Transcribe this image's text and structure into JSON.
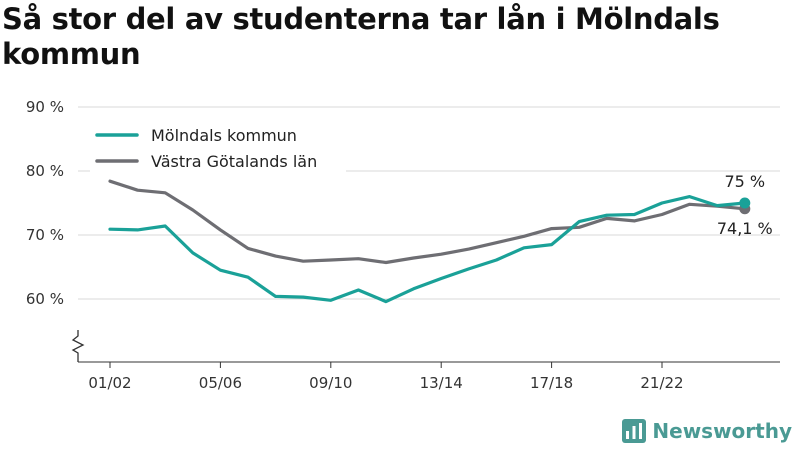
{
  "title": "Så stor del av studenterna tar lån i Mölndals kommun",
  "brand": {
    "name": "Newsworthy",
    "icon": "bar-chart-logo-icon",
    "color": "#4a9a94"
  },
  "chart_data": {
    "type": "line",
    "title": "Så stor del av studenterna tar lån i Mölndals kommun",
    "xlabel": "",
    "ylabel": "",
    "ylim": [
      50,
      90
    ],
    "y_ticks": [
      60,
      70,
      80,
      90
    ],
    "y_tick_labels": [
      "60 %",
      "70 %",
      "80 %",
      "90 %"
    ],
    "y_axis_break": true,
    "grid": "horizontal",
    "legend_position": "top-left",
    "x": [
      "01/02",
      "02/03",
      "03/04",
      "04/05",
      "05/06",
      "06/07",
      "07/08",
      "08/09",
      "09/10",
      "10/11",
      "11/12",
      "12/13",
      "13/14",
      "14/15",
      "15/16",
      "16/17",
      "17/18",
      "18/19",
      "19/20",
      "20/21",
      "21/22",
      "22/23",
      "23/24",
      "24/25"
    ],
    "x_tick_labels": [
      "01/02",
      "05/06",
      "09/10",
      "13/14",
      "17/18",
      "21/22"
    ],
    "series": [
      {
        "name": "Mölndals kommun",
        "color": "#1aa198",
        "values": [
          70.9,
          70.8,
          71.4,
          67.2,
          64.5,
          63.4,
          60.4,
          60.3,
          59.8,
          61.4,
          59.6,
          61.6,
          63.2,
          64.7,
          66.1,
          68.0,
          68.5,
          72.1,
          73.1,
          73.2,
          75.0,
          76.0,
          74.6,
          75.0
        ],
        "end_label": "75 %"
      },
      {
        "name": "Västra Götalands län",
        "color": "#6e6e73",
        "values": [
          78.4,
          77.0,
          76.6,
          73.9,
          70.8,
          67.9,
          66.7,
          65.9,
          66.1,
          66.3,
          65.7,
          66.4,
          67.0,
          67.8,
          68.8,
          69.8,
          71.0,
          71.2,
          72.6,
          72.2,
          73.2,
          74.8,
          74.5,
          74.1
        ],
        "end_label": "74,1 %"
      }
    ]
  }
}
